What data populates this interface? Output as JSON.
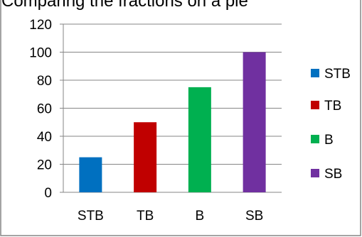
{
  "chart_data": {
    "type": "bar",
    "title": "Comparing the fractions on a pie",
    "categories": [
      "STB",
      "TB",
      "B",
      "SB"
    ],
    "series": [
      {
        "name": "STB",
        "category": "STB",
        "value": 25,
        "color": "#0070C0"
      },
      {
        "name": "TB",
        "category": "TB",
        "value": 50,
        "color": "#C00000"
      },
      {
        "name": "B",
        "category": "B",
        "value": 75,
        "color": "#00B050"
      },
      {
        "name": "SB",
        "category": "SB",
        "value": 100,
        "color": "#7030A0"
      }
    ],
    "xlabel": "",
    "ylabel": "",
    "ylim": [
      0,
      120
    ],
    "yticks": [
      0,
      20,
      40,
      60,
      80,
      100,
      120
    ],
    "grid": true,
    "legend": "right"
  }
}
